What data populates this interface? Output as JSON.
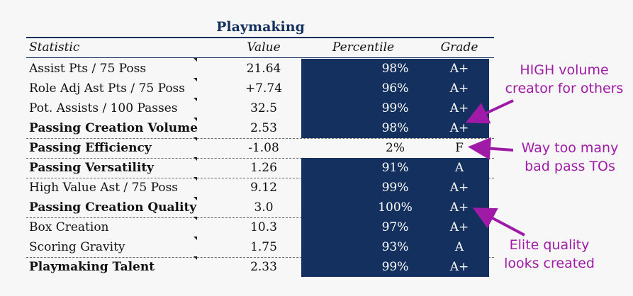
{
  "title": "Playmaking",
  "headers": {
    "statistic": "Statistic",
    "value": "Value",
    "percentile": "Percentile",
    "grade": "Grade"
  },
  "colors": {
    "navy": "#14305f",
    "annotation": "#a01aa8"
  },
  "rows": [
    {
      "stat": "Assist Pts / 75 Poss",
      "value": "21.64",
      "percentile": "98%",
      "grade": "A+",
      "bold": false,
      "percentile_fraction": 0.98
    },
    {
      "stat": "Role Adj Ast Pts / 75 Poss",
      "value": "+7.74",
      "percentile": "96%",
      "grade": "A+",
      "bold": false,
      "percentile_fraction": 0.96
    },
    {
      "stat": "Pot. Assists / 100 Passes",
      "value": "32.5",
      "percentile": "99%",
      "grade": "A+",
      "bold": false,
      "percentile_fraction": 0.99
    },
    {
      "stat": "Passing Creation Volume",
      "value": "2.53",
      "percentile": "98%",
      "grade": "A+",
      "bold": true,
      "percentile_fraction": 0.98
    },
    {
      "stat": "Passing Efficiency",
      "value": "-1.08",
      "percentile": "2%",
      "grade": "F",
      "bold": true,
      "percentile_fraction": 0.02
    },
    {
      "stat": "Passing Versatility",
      "value": "1.26",
      "percentile": "91%",
      "grade": "A",
      "bold": true,
      "percentile_fraction": 0.91
    },
    {
      "stat": "High Value Ast / 75 Poss",
      "value": "9.12",
      "percentile": "99%",
      "grade": "A+",
      "bold": false,
      "percentile_fraction": 0.99
    },
    {
      "stat": "Passing Creation Quality",
      "value": "3.0",
      "percentile": "100%",
      "grade": "A+",
      "bold": true,
      "percentile_fraction": 1.0
    },
    {
      "stat": "Box Creation",
      "value": "10.3",
      "percentile": "97%",
      "grade": "A+",
      "bold": false,
      "percentile_fraction": 0.97
    },
    {
      "stat": "Scoring Gravity",
      "value": "1.75",
      "percentile": "93%",
      "grade": "A",
      "bold": false,
      "percentile_fraction": 0.93
    },
    {
      "stat": "Playmaking Talent",
      "value": "2.33",
      "percentile": "99%",
      "grade": "A+",
      "bold": true,
      "percentile_fraction": 0.99
    }
  ],
  "annotations": {
    "high_volume": {
      "line1": "HIGH volume",
      "line2": "creator for others"
    },
    "too_many_tos": {
      "line1": "Way too many",
      "line2": "bad pass TOs"
    },
    "elite_quality": {
      "line1": "Elite quality",
      "line2": "looks created"
    }
  }
}
